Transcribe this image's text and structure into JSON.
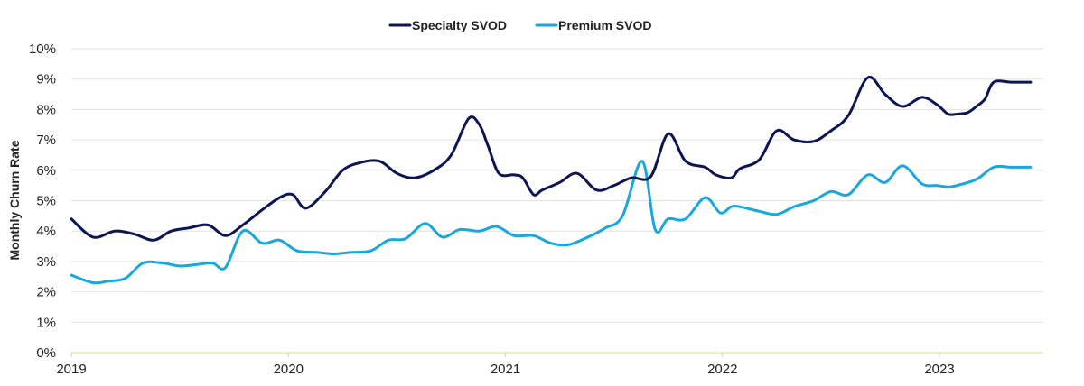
{
  "chart_data": {
    "type": "line",
    "title": "",
    "xlabel": "",
    "ylabel": "Monthly Churn Rate",
    "ylim": [
      0,
      10
    ],
    "y_ticks": [
      "0%",
      "1%",
      "2%",
      "3%",
      "4%",
      "5%",
      "6%",
      "7%",
      "8%",
      "9%",
      "10%"
    ],
    "x_ticks": [
      "2019",
      "2020",
      "2021",
      "2022",
      "2023"
    ],
    "xlim": [
      2019.0,
      2023.45
    ],
    "grid": "horizontal",
    "legend_position": "top-center",
    "colors": {
      "Specialty SVOD": "#0d1652",
      "Premium SVOD": "#1aa7dd",
      "grid": "#e3e3e3",
      "baseline": "#eee6a8"
    },
    "series": [
      {
        "name": "Specialty SVOD",
        "x": [
          2019.0,
          2019.1,
          2019.2,
          2019.29,
          2019.38,
          2019.46,
          2019.54,
          2019.63,
          2019.71,
          2019.79,
          2019.88,
          2019.96,
          2020.02,
          2020.08,
          2020.17,
          2020.25,
          2020.33,
          2020.42,
          2020.5,
          2020.58,
          2020.67,
          2020.75,
          2020.83,
          2020.88,
          2020.92,
          2020.97,
          2021.04,
          2021.08,
          2021.13,
          2021.17,
          2021.25,
          2021.33,
          2021.42,
          2021.5,
          2021.58,
          2021.67,
          2021.75,
          2021.83,
          2021.92,
          2021.97,
          2022.04,
          2022.08,
          2022.17,
          2022.25,
          2022.33,
          2022.42,
          2022.5,
          2022.58,
          2022.67,
          2022.75,
          2022.83,
          2022.92,
          2022.99,
          2023.04,
          2023.08,
          2023.13,
          2023.17,
          2023.21,
          2023.25,
          2023.33,
          2023.42
        ],
        "values": [
          4.4,
          3.8,
          4.0,
          3.9,
          3.7,
          4.0,
          4.1,
          4.2,
          3.85,
          4.2,
          4.7,
          5.1,
          5.2,
          4.75,
          5.3,
          6.0,
          6.25,
          6.3,
          5.9,
          5.75,
          6.0,
          6.5,
          7.7,
          7.5,
          6.8,
          5.9,
          5.85,
          5.75,
          5.2,
          5.35,
          5.6,
          5.9,
          5.35,
          5.5,
          5.75,
          5.8,
          7.2,
          6.3,
          6.1,
          5.85,
          5.75,
          6.05,
          6.35,
          7.3,
          7.0,
          6.95,
          7.3,
          7.8,
          9.05,
          8.5,
          8.1,
          8.4,
          8.15,
          7.85,
          7.85,
          7.9,
          8.1,
          8.35,
          8.9,
          8.9,
          8.9
        ]
      },
      {
        "name": "Premium SVOD",
        "x": [
          2019.0,
          2019.1,
          2019.17,
          2019.25,
          2019.33,
          2019.42,
          2019.5,
          2019.58,
          2019.65,
          2019.71,
          2019.79,
          2019.88,
          2019.96,
          2020.04,
          2020.13,
          2020.21,
          2020.29,
          2020.38,
          2020.46,
          2020.54,
          2020.63,
          2020.71,
          2020.79,
          2020.88,
          2020.96,
          2021.04,
          2021.13,
          2021.21,
          2021.29,
          2021.38,
          2021.46,
          2021.54,
          2021.63,
          2021.69,
          2021.75,
          2021.83,
          2021.92,
          2021.99,
          2022.04,
          2022.08,
          2022.17,
          2022.25,
          2022.33,
          2022.42,
          2022.5,
          2022.58,
          2022.67,
          2022.75,
          2022.83,
          2022.92,
          2022.99,
          2023.04,
          2023.08,
          2023.17,
          2023.25,
          2023.33,
          2023.42
        ],
        "values": [
          2.55,
          2.3,
          2.35,
          2.45,
          2.95,
          2.95,
          2.85,
          2.9,
          2.95,
          2.8,
          4.0,
          3.6,
          3.7,
          3.35,
          3.3,
          3.25,
          3.3,
          3.35,
          3.7,
          3.75,
          4.25,
          3.8,
          4.05,
          4.0,
          4.15,
          3.85,
          3.85,
          3.6,
          3.55,
          3.8,
          4.1,
          4.5,
          6.3,
          4.05,
          4.4,
          4.4,
          5.1,
          4.6,
          4.8,
          4.8,
          4.65,
          4.55,
          4.8,
          5.0,
          5.3,
          5.2,
          5.85,
          5.6,
          6.15,
          5.55,
          5.5,
          5.45,
          5.5,
          5.7,
          6.1,
          6.1,
          6.1
        ]
      }
    ]
  }
}
